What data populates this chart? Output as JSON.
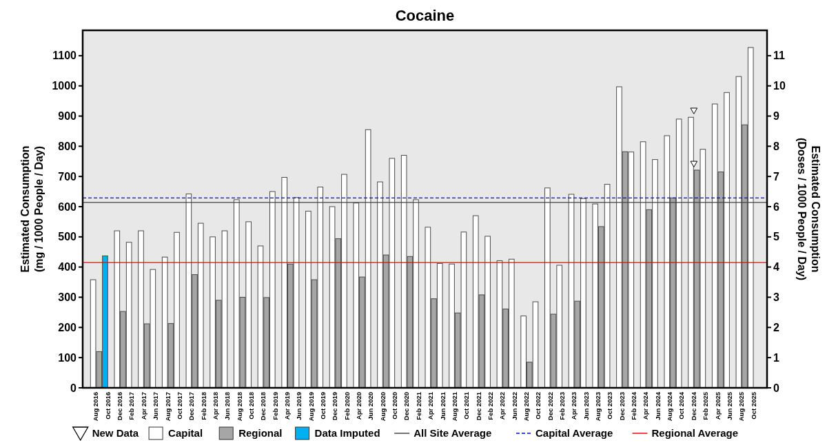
{
  "chart_data": {
    "type": "bar",
    "title": "Cocaine",
    "ylabel": "Estimated Consumption\n(mg / 1000 People / Day)",
    "y2label": "Estimated Consumption\n(Doses / 1000 People / Day)",
    "categories": [
      "Aug 2016",
      "Oct 2016",
      "Dec 2016",
      "Feb 2017",
      "Apr 2017",
      "Jun 2017",
      "Aug 2017",
      "Oct 2017",
      "Dec 2017",
      "Feb 2018",
      "Apr 2018",
      "Jun 2018",
      "Aug 2018",
      "Oct 2018",
      "Dec 2018",
      "Feb 2019",
      "Apr 2019",
      "Jun 2019",
      "Aug 2019",
      "Oct 2019",
      "Dec 2019",
      "Feb 2020",
      "Apr 2020",
      "Jun 2020",
      "Aug 2020",
      "Oct 2020",
      "Dec 2020",
      "Feb 2021",
      "Apr 2021",
      "Jun 2021",
      "Aug 2021",
      "Oct 2021",
      "Dec 2021",
      "Feb 2022",
      "Apr 2022",
      "Jun 2022",
      "Aug 2022",
      "Oct 2022",
      "Dec 2022",
      "Feb 2023",
      "Apr 2023",
      "Jun 2023",
      "Aug 2023",
      "Oct 2023",
      "Dec 2023",
      "Feb 2024",
      "Apr 2024",
      "Jun 2024",
      "Aug 2024",
      "Oct 2024",
      "Dec 2024",
      "Feb 2025",
      "Apr 2025",
      "Jun 2025",
      "Aug 2025",
      "Oct 2025"
    ],
    "series": [
      {
        "name": "New Data",
        "type": "scatter",
        "marker": "triangle",
        "color": "#ffffff",
        "x": [
          "Dec 2024",
          "Dec 2024"
        ],
        "values": [
          920,
          744
        ]
      },
      {
        "name": "Capital",
        "color": "#ffffff",
        "values": [
          358,
          null,
          520,
          482,
          520,
          392,
          433,
          515,
          642,
          545,
          500,
          520,
          623,
          550,
          470,
          650,
          697,
          630,
          585,
          665,
          600,
          707,
          612,
          855,
          682,
          760,
          770,
          623,
          532,
          412,
          410,
          516,
          570,
          502,
          421,
          426,
          238,
          285,
          662,
          406,
          641,
          627,
          609,
          674,
          997,
          781,
          815,
          756,
          835,
          890,
          896,
          790,
          940,
          978,
          1031,
          1127
        ]
      },
      {
        "name": "Regional",
        "color": "#a6a6a6",
        "values": [
          120,
          null,
          253,
          null,
          212,
          null,
          213,
          null,
          375,
          null,
          290,
          null,
          300,
          null,
          299,
          null,
          410,
          null,
          358,
          null,
          494,
          null,
          367,
          null,
          440,
          null,
          435,
          null,
          295,
          null,
          248,
          null,
          308,
          null,
          261,
          null,
          85,
          null,
          244,
          null,
          287,
          null,
          534,
          null,
          782,
          null,
          590,
          null,
          629,
          null,
          721,
          null,
          715,
          null,
          871,
          null
        ]
      },
      {
        "name": "Data Imputed",
        "color": "#00b0f0",
        "values": [
          null,
          437,
          null,
          null,
          null,
          null,
          null,
          null,
          null,
          null,
          null,
          null,
          null,
          null,
          null,
          null,
          null,
          null,
          null,
          null,
          null,
          null,
          null,
          null,
          null,
          null,
          null,
          null,
          null,
          null,
          null,
          null,
          null,
          null,
          null,
          null,
          null,
          null,
          null,
          null,
          null,
          null,
          null,
          null,
          null,
          null,
          null,
          null,
          null,
          null,
          null,
          null,
          null,
          null,
          null,
          null
        ]
      }
    ],
    "ref_lines": [
      {
        "axis": "y",
        "value": 614,
        "label": "All Site Average",
        "color": "#444444",
        "line_style": "solid"
      },
      {
        "axis": "y",
        "value": 629,
        "label": "Capital Average",
        "color": "#0000ff",
        "line_style": "dashed"
      },
      {
        "axis": "y",
        "value": 415,
        "label": "Regional Average",
        "color": "#ff0000",
        "line_style": "solid"
      }
    ],
    "ylim": [
      0,
      1184
    ],
    "yticks": [
      0,
      100,
      200,
      300,
      400,
      500,
      600,
      700,
      800,
      900,
      1000,
      1100
    ],
    "y2lim": [
      0,
      11.84
    ],
    "y2ticks": [
      0,
      1,
      2,
      3,
      4,
      5,
      6,
      7,
      8,
      9,
      10,
      11
    ],
    "grid": false,
    "legend": "bottom"
  }
}
